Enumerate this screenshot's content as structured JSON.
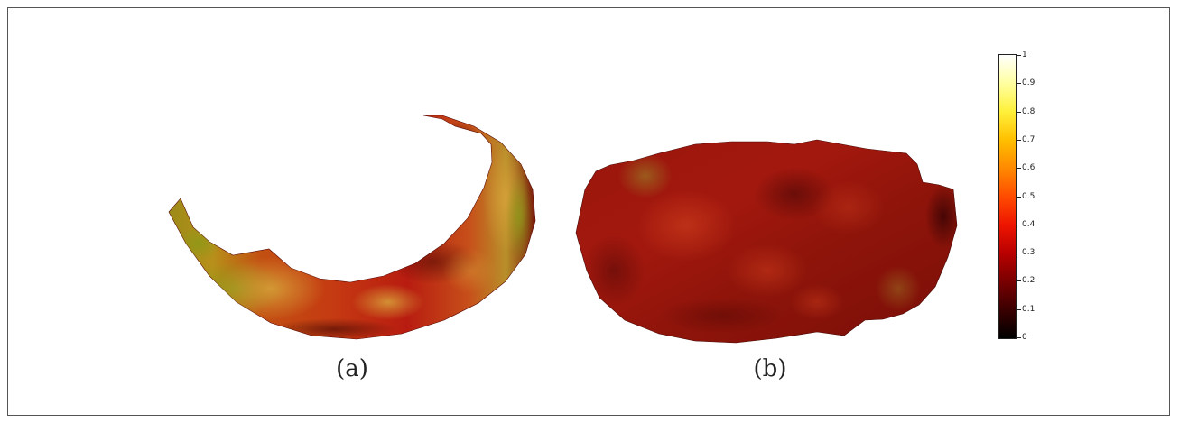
{
  "captions": {
    "a": "(a)",
    "b": "(b)"
  },
  "colorbar": {
    "colormap": "hot",
    "range": [
      0,
      1
    ],
    "ticks": [
      "0",
      "0.1",
      "0.2",
      "0.3",
      "0.4",
      "0.5",
      "0.6",
      "0.7",
      "0.8",
      "0.9",
      "1"
    ]
  },
  "colors": {
    "surface_base": "#b51a10",
    "surface_dark": "#4a0505",
    "surface_highlight": "#c8a020",
    "frame_border": "#555555"
  }
}
